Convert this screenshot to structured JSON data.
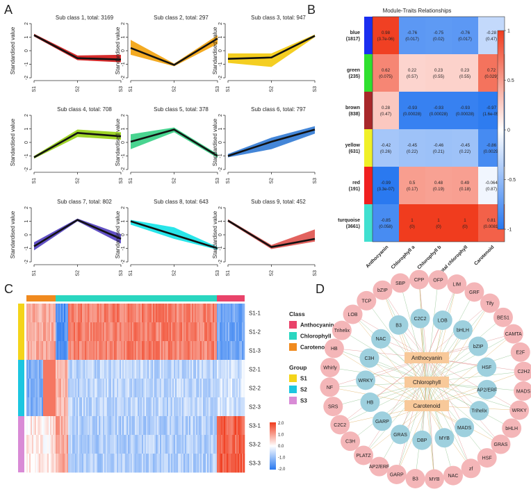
{
  "panels": {
    "A": "A",
    "B": "B",
    "C": "C",
    "D": "D"
  },
  "panelA": {
    "x_ticks": [
      "S1",
      "S2",
      "S3"
    ],
    "y_ticks": [
      "2",
      "1",
      "0",
      "-1",
      "-2"
    ],
    "ylabel": "Standardised value",
    "subplots": [
      {
        "title": "Sub class 1, total: 3169",
        "color": "#d42020",
        "mean": [
          1.15,
          -0.55,
          -0.65
        ],
        "upper": [
          1.25,
          -0.35,
          -0.3
        ],
        "lower": [
          1.05,
          -0.7,
          -0.85
        ]
      },
      {
        "title": "Sub class 2, total: 297",
        "color": "#f2a516",
        "mean": [
          0.2,
          -1.05,
          0.9
        ],
        "upper": [
          0.8,
          -0.95,
          1.15
        ],
        "lower": [
          -0.3,
          -1.15,
          0.5
        ]
      },
      {
        "title": "Sub class 3, total: 947",
        "color": "#f3cb16",
        "mean": [
          -0.6,
          -0.5,
          1.1
        ],
        "upper": [
          -0.2,
          -0.2,
          1.2
        ],
        "lower": [
          -0.9,
          -1.2,
          1.0
        ]
      },
      {
        "title": "Sub class 4, total: 708",
        "color": "#9ad21e",
        "mean": [
          -1.1,
          0.7,
          0.45
        ],
        "upper": [
          -1.0,
          0.95,
          0.75
        ],
        "lower": [
          -1.2,
          0.4,
          0.2
        ]
      },
      {
        "title": "Sub class 5, total: 378",
        "color": "#3fd28a",
        "mean": [
          0.05,
          0.95,
          -1.0
        ],
        "upper": [
          0.6,
          1.1,
          -0.85
        ],
        "lower": [
          -0.5,
          0.75,
          -1.15
        ]
      },
      {
        "title": "Sub class 6, total: 797",
        "color": "#3a7fd6",
        "mean": [
          -1.0,
          0.05,
          0.95
        ],
        "upper": [
          -0.85,
          0.35,
          1.2
        ],
        "lower": [
          -1.1,
          -0.5,
          0.65
        ]
      },
      {
        "title": "Sub class 7, total: 802",
        "color": "#5a48c2",
        "mean": [
          -0.85,
          1.1,
          -0.3
        ],
        "upper": [
          -0.55,
          1.2,
          0.05
        ],
        "lower": [
          -1.15,
          1.0,
          -0.65
        ]
      },
      {
        "title": "Sub class 8, total: 643",
        "color": "#1ee4e8",
        "mean": [
          1.0,
          0.0,
          -1.0
        ],
        "upper": [
          1.1,
          0.55,
          -0.9
        ],
        "lower": [
          0.75,
          -0.3,
          -1.1
        ]
      },
      {
        "title": "Sub class 9, total: 452",
        "color": "#e05a55",
        "mean": [
          1.05,
          -0.9,
          -0.3
        ],
        "upper": [
          1.15,
          -0.75,
          0.4
        ],
        "lower": [
          0.95,
          -1.05,
          -0.5
        ]
      }
    ]
  },
  "panelB": {
    "title": "Module-Traits Relationships",
    "columns": [
      "Anthocyanin",
      "Chlorophyll a",
      "Chlorophyll b",
      "Total chlorophyll",
      "Carotenoid"
    ],
    "rows": [
      {
        "name": "blue",
        "count": "(1817)",
        "color": "#1a2ef0"
      },
      {
        "name": "green",
        "count": "(235)",
        "color": "#2fe02f"
      },
      {
        "name": "brown",
        "count": "(838)",
        "color": "#a8282a"
      },
      {
        "name": "yellow",
        "count": "(631)",
        "color": "#f0f028"
      },
      {
        "name": "red",
        "count": "(191)",
        "color": "#f02020"
      },
      {
        "name": "turquoise",
        "count": "(3661)",
        "color": "#40e0d0"
      }
    ],
    "values": [
      [
        0.98,
        -0.76,
        -0.75,
        -0.76,
        -0.28
      ],
      [
        0.62,
        0.22,
        0.23,
        0.23,
        0.72
      ],
      [
        0.28,
        -0.93,
        -0.93,
        -0.93,
        -0.97
      ],
      [
        -0.42,
        -0.45,
        -0.46,
        -0.45,
        -0.86
      ],
      [
        -0.99,
        0.5,
        0.48,
        0.49,
        -0.064
      ],
      [
        -0.85,
        1,
        1,
        1,
        0.81
      ]
    ],
    "labels": [
      [
        "0.98",
        "-0.76",
        "-0.75",
        "-0.76",
        "-0.28"
      ],
      [
        "0.62",
        "0.22",
        "0.23",
        "0.23",
        "0.72"
      ],
      [
        "0.28",
        "-0.93",
        "-0.93",
        "-0.93",
        "-0.97"
      ],
      [
        "-0.42",
        "-0.45",
        "-0.46",
        "-0.45",
        "-0.86"
      ],
      [
        "-0.99",
        "0.5",
        "0.48",
        "0.49",
        "-0.064"
      ],
      [
        "-0.85",
        "1",
        "1",
        "1",
        "0.81"
      ]
    ],
    "pvalues": [
      [
        "(3.7e-06)",
        "(0.017)",
        "(0.02)",
        "(0.017)",
        "(0.47)"
      ],
      [
        "(0.075)",
        "(0.57)",
        "(0.55)",
        "(0.55)",
        "(0.029)"
      ],
      [
        "(0.47)",
        "(0.00028)",
        "(0.00028)",
        "(0.00028)",
        "(1.6e-05)"
      ],
      [
        "(0.26)",
        "(0.22)",
        "(0.21)",
        "(0.22)",
        "(0.0029)"
      ],
      [
        "(3.3e-07)",
        "(0.17)",
        "(0.19)",
        "(0.18)",
        "(0.87)"
      ],
      [
        "(0.058)",
        "(0)",
        "(0)",
        "(0)",
        "(0.0081)"
      ]
    ],
    "scale_ticks": [
      "1",
      "0.5",
      "0",
      "-0.5",
      "-1"
    ]
  },
  "panelC": {
    "samples": [
      "S1-1",
      "S1-2",
      "S1-3",
      "S2-1",
      "S2-2",
      "S2-3",
      "S3-1",
      "S3-2",
      "S3-3"
    ],
    "class_title": "Class",
    "class_legend": [
      {
        "label": "Anthocyanin",
        "color": "#e9436a"
      },
      {
        "label": "Chlorophyll",
        "color": "#2ad6c0"
      },
      {
        "label": "Carotenoid",
        "color": "#f08a1e"
      }
    ],
    "group_title": "Group",
    "group_legend": [
      {
        "label": "S1",
        "color": "#f4d41a"
      },
      {
        "label": "S2",
        "color": "#1cc6e0"
      },
      {
        "label": "S3",
        "color": "#d98bd6"
      }
    ],
    "scale_ticks": [
      "2.0",
      "1.0",
      "0.0",
      "-1.0",
      "-2.0"
    ]
  },
  "panelD": {
    "center": [
      "Anthocyanin",
      "Chlorophyll",
      "Carotenoid"
    ],
    "inner": [
      "LOB",
      "bHLH",
      "bZIP",
      "HSF",
      "AP2/ERF",
      "Trihelix",
      "MADS",
      "MYB",
      "DBP",
      "GRAS",
      "GARP",
      "HB",
      "WRKY",
      "C3H",
      "NAC",
      "B3",
      "C2C2"
    ],
    "outer": [
      "LIM",
      "GRF",
      "Tify",
      "BES1",
      "CAMTA",
      "E2F",
      "C2H2",
      "MADS",
      "WRKY",
      "bHLH",
      "GRAS",
      "HSF",
      "zf",
      "NAC",
      "MYB",
      "B3",
      "GARP",
      "AP2/ERF",
      "PLATZ",
      "C3H",
      "C2C2",
      "SRS",
      "NF",
      "Whirly",
      "HB",
      "Trihelix",
      "LOB",
      "TCP",
      "bZIP",
      "SBP",
      "CPP",
      "OFP"
    ]
  }
}
